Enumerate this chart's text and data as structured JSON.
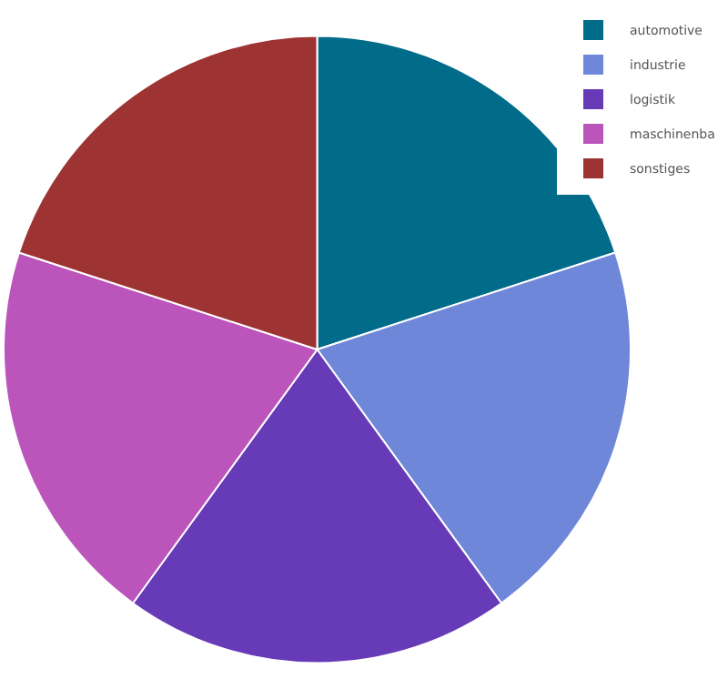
{
  "chart_data": {
    "type": "pie",
    "categories": [
      "automotive",
      "industrie",
      "logistik",
      "maschinenba",
      "sonstiges"
    ],
    "values": [
      20,
      20,
      20,
      20,
      20
    ],
    "colors": [
      "#016b8a",
      "#6f87d8",
      "#673ab7",
      "#bb55bb",
      "#9e3333"
    ],
    "legend": "top right"
  }
}
